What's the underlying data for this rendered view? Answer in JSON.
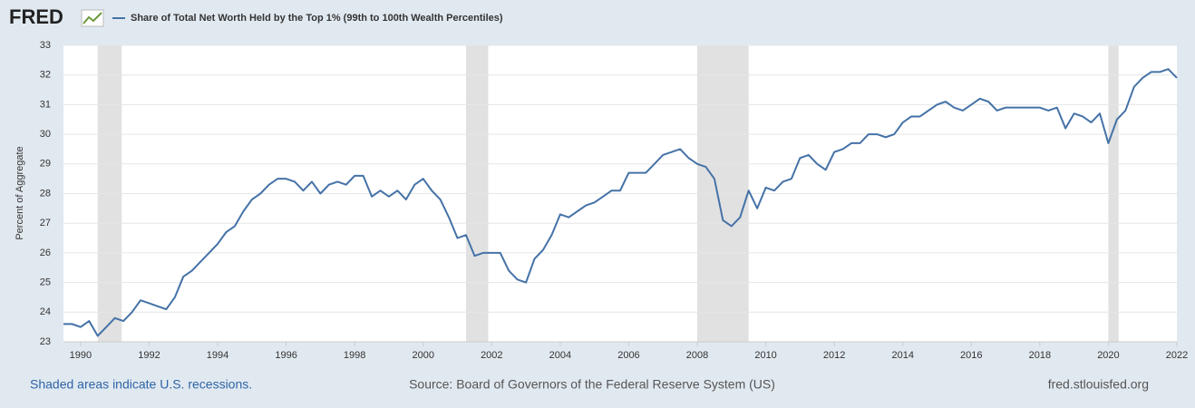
{
  "header": {
    "logo": "FRED"
  },
  "chart_data": {
    "type": "line",
    "title": "Share of Total Net Worth Held by the Top 1% (99th to 100th Wealth Percentiles)",
    "y_label": "Percent of Aggregate",
    "x": [
      1989.5,
      1989.75,
      1990,
      1990.25,
      1990.5,
      1990.75,
      1991,
      1991.25,
      1991.5,
      1991.75,
      1992,
      1992.25,
      1992.5,
      1992.75,
      1993,
      1993.25,
      1993.5,
      1993.75,
      1994,
      1994.25,
      1994.5,
      1994.75,
      1995,
      1995.25,
      1995.5,
      1995.75,
      1996,
      1996.25,
      1996.5,
      1996.75,
      1997,
      1997.25,
      1997.5,
      1997.75,
      1998,
      1998.25,
      1998.5,
      1998.75,
      1999,
      1999.25,
      1999.5,
      1999.75,
      2000,
      2000.25,
      2000.5,
      2000.75,
      2001,
      2001.25,
      2001.5,
      2001.75,
      2002,
      2002.25,
      2002.5,
      2002.75,
      2003,
      2003.25,
      2003.5,
      2003.75,
      2004,
      2004.25,
      2004.5,
      2004.75,
      2005,
      2005.25,
      2005.5,
      2005.75,
      2006,
      2006.25,
      2006.5,
      2006.75,
      2007,
      2007.25,
      2007.5,
      2007.75,
      2008,
      2008.25,
      2008.5,
      2008.75,
      2009,
      2009.25,
      2009.5,
      2009.75,
      2010,
      2010.25,
      2010.5,
      2010.75,
      2011,
      2011.25,
      2011.5,
      2011.75,
      2012,
      2012.25,
      2012.5,
      2012.75,
      2013,
      2013.25,
      2013.5,
      2013.75,
      2014,
      2014.25,
      2014.5,
      2014.75,
      2015,
      2015.25,
      2015.5,
      2015.75,
      2016,
      2016.25,
      2016.5,
      2016.75,
      2017,
      2017.25,
      2017.5,
      2017.75,
      2018,
      2018.25,
      2018.5,
      2018.75,
      2019,
      2019.25,
      2019.5,
      2019.75,
      2020,
      2020.25,
      2020.5,
      2020.75,
      2021,
      2021.25,
      2021.5,
      2021.75,
      2022
    ],
    "series": [
      {
        "name": "Share of Total Net Worth Held by the Top 1% (99th to 100th Wealth Percentiles)",
        "color": "#4572a7",
        "values": [
          23.6,
          23.6,
          23.5,
          23.7,
          23.2,
          23.5,
          23.8,
          23.7,
          24.0,
          24.4,
          24.3,
          24.2,
          24.1,
          24.5,
          25.2,
          25.4,
          25.7,
          26.0,
          26.3,
          26.7,
          26.9,
          27.4,
          27.8,
          28.0,
          28.3,
          28.5,
          28.5,
          28.4,
          28.1,
          28.4,
          28.0,
          28.3,
          28.4,
          28.3,
          28.6,
          28.6,
          27.9,
          28.1,
          27.9,
          28.1,
          27.8,
          28.3,
          28.5,
          28.1,
          27.8,
          27.2,
          26.5,
          26.6,
          25.9,
          26.0,
          26.0,
          26.0,
          25.4,
          25.1,
          25.0,
          25.8,
          26.1,
          26.6,
          27.3,
          27.2,
          27.4,
          27.6,
          27.7,
          27.9,
          28.1,
          28.1,
          28.7,
          28.7,
          28.7,
          29.0,
          29.3,
          29.4,
          29.5,
          29.2,
          29.0,
          28.9,
          28.5,
          27.1,
          26.9,
          27.2,
          28.1,
          27.5,
          28.2,
          28.1,
          28.4,
          28.5,
          29.2,
          29.3,
          29.0,
          28.8,
          29.4,
          29.5,
          29.7,
          29.7,
          30.0,
          30.0,
          29.9,
          30.0,
          30.4,
          30.6,
          30.6,
          30.8,
          31.0,
          31.1,
          30.9,
          30.8,
          31.0,
          31.2,
          31.1,
          30.8,
          30.9,
          30.9,
          30.9,
          30.9,
          30.9,
          30.8,
          30.9,
          30.2,
          30.7,
          30.6,
          30.4,
          30.7,
          29.7,
          30.5,
          30.8,
          31.6,
          31.9,
          32.1,
          32.1,
          32.2,
          31.9
        ]
      }
    ],
    "recessions": [
      [
        1990.5,
        1991.2
      ],
      [
        2001.25,
        2001.9
      ],
      [
        2008.0,
        2009.5
      ],
      [
        2020.0,
        2020.3
      ]
    ],
    "recession_color": "#e1e1e1",
    "xlim": [
      1989.5,
      2022
    ],
    "xticks": [
      1990,
      1992,
      1994,
      1996,
      1998,
      2000,
      2002,
      2004,
      2006,
      2008,
      2010,
      2012,
      2014,
      2016,
      2018,
      2020,
      2022
    ],
    "ylim": [
      23,
      33
    ],
    "yticks": [
      23,
      24,
      25,
      26,
      27,
      28,
      29,
      30,
      31,
      32,
      33
    ],
    "grid": true
  },
  "footer": {
    "left": "Shaded areas indicate U.S. recessions.",
    "center": "Source: Board of Governors of the Federal Reserve System (US)",
    "right": "fred.stlouisfed.org"
  }
}
